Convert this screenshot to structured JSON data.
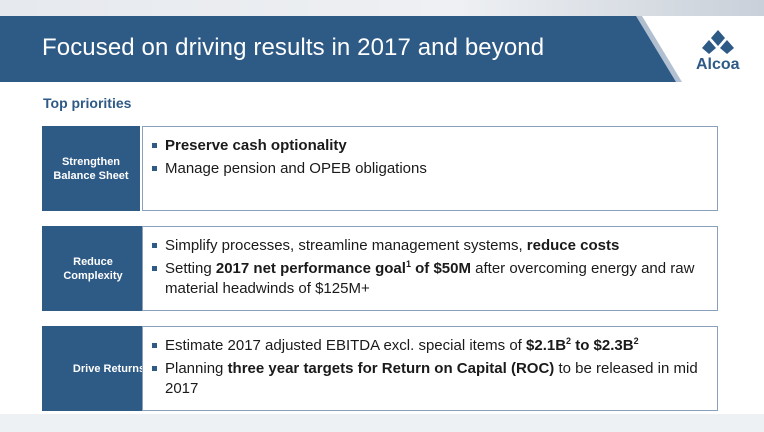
{
  "header": {
    "title": "Focused on driving results in 2017 and beyond",
    "logo_text": "Alcoa",
    "bar_color": "#2e5a86"
  },
  "section_title": "Top priorities",
  "rows": [
    {
      "label": "Strengthen Balance Sheet",
      "bullets": [
        {
          "parts": [
            {
              "text": "Preserve cash optionality",
              "bold": true
            }
          ]
        },
        {
          "parts": [
            {
              "text": "Manage pension and OPEB obligations"
            }
          ]
        }
      ]
    },
    {
      "label": "Reduce Complexity",
      "bullets": [
        {
          "parts": [
            {
              "text": "Simplify processes, streamline management systems, "
            },
            {
              "text": "reduce costs",
              "bold": true
            }
          ]
        },
        {
          "parts": [
            {
              "text": "Setting "
            },
            {
              "text": "2017 net performance goal",
              "bold": true
            },
            {
              "text": "1",
              "bold": true,
              "sup": true
            },
            {
              "text": " of $50M",
              "bold": true
            },
            {
              "text": " after overcoming energy and raw material headwinds of $125M+"
            }
          ]
        }
      ]
    },
    {
      "label": "Drive Returns",
      "bullets": [
        {
          "parts": [
            {
              "text": "Estimate 2017 adjusted EBITDA excl. special items of "
            },
            {
              "text": "$2.1B",
              "bold": true
            },
            {
              "text": "2",
              "bold": true,
              "sup": true
            },
            {
              "text": " to $2.3B",
              "bold": true
            },
            {
              "text": "2",
              "bold": true,
              "sup": true
            }
          ]
        },
        {
          "parts": [
            {
              "text": "Planning "
            },
            {
              "text": "three year targets for Return on Capital (ROC)",
              "bold": true
            },
            {
              "text": " to be released in mid 2017"
            }
          ]
        }
      ]
    }
  ]
}
